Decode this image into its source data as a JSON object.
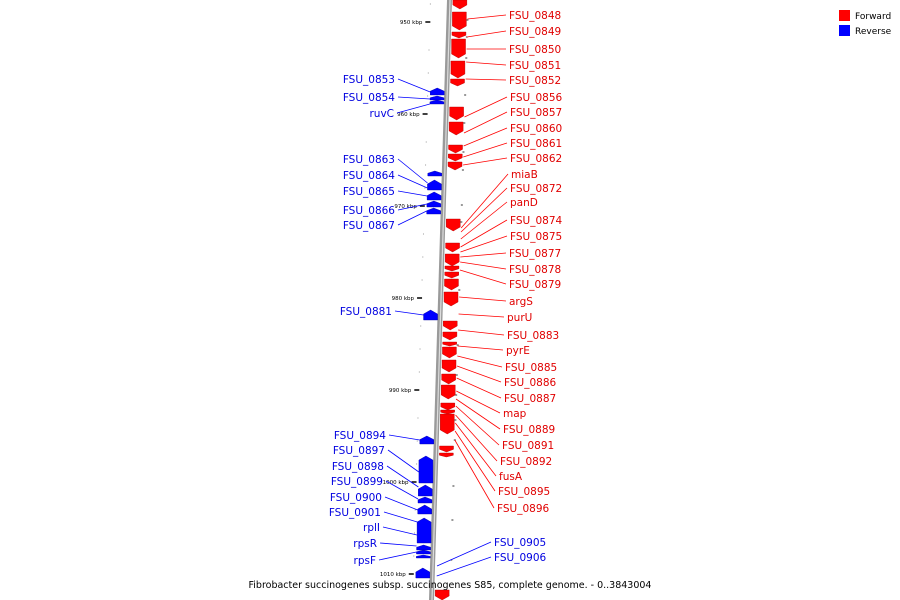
{
  "colors": {
    "forward": "#ff0000",
    "reverse": "#0000ff",
    "backbone": "#888888"
  },
  "legend": {
    "forward": "Forward",
    "reverse": "Reverse"
  },
  "caption": "Fibrobacter succinogenes subsp. succinogenes S85, complete genome. - 0..3843004",
  "ticks": [
    "950 kbp",
    "960 kbp",
    "970 kbp",
    "980 kbp",
    "990 kbp",
    "1000 kbp",
    "1010 kbp"
  ],
  "forward_labels": [
    "FSU_0848",
    "FSU_0849",
    "FSU_0850",
    "FSU_0851",
    "FSU_0852",
    "FSU_0856",
    "FSU_0857",
    "FSU_0860",
    "FSU_0861",
    "FSU_0862",
    "miaB",
    "FSU_0872",
    "panD",
    "FSU_0874",
    "FSU_0875",
    "FSU_0877",
    "FSU_0878",
    "FSU_0879",
    "argS",
    "purU",
    "FSU_0883",
    "pyrE",
    "FSU_0885",
    "FSU_0886",
    "FSU_0887",
    "map",
    "FSU_0889",
    "FSU_0891",
    "FSU_0892",
    "fusA",
    "FSU_0895",
    "FSU_0896"
  ],
  "reverse_labels": [
    "FSU_0853",
    "FSU_0854",
    "ruvC",
    "FSU_0863",
    "FSU_0864",
    "FSU_0865",
    "FSU_0866",
    "FSU_0867",
    "FSU_0881",
    "FSU_0894",
    "FSU_0897",
    "FSU_0898",
    "FSU_0899",
    "FSU_0900",
    "FSU_0901",
    "rplI",
    "rpsR",
    "rpsF",
    "FSU_0905",
    "FSU_0906"
  ]
}
